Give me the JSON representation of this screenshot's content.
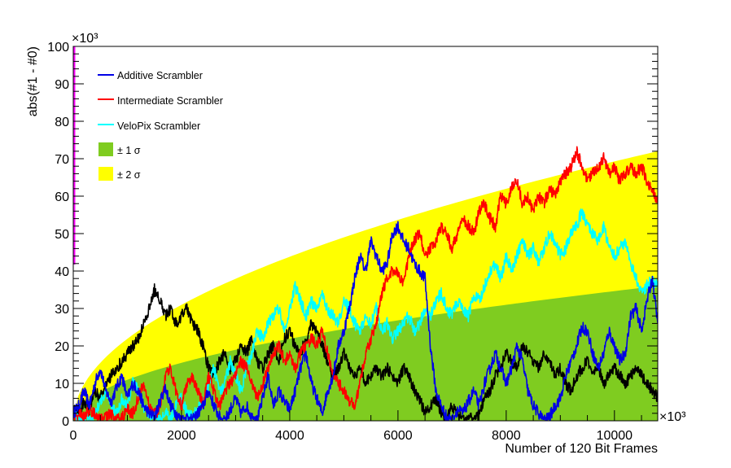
{
  "chart_data": {
    "type": "line",
    "title": "",
    "xlabel": "Number of 120 Bit Frames",
    "ylabel": "abs(#1 - #0)",
    "x_multiplier_label": "×10³",
    "y_multiplier_label": "×10³",
    "xlim": [
      0,
      10800
    ],
    "ylim": [
      0,
      100
    ],
    "x_ticks": [
      0,
      2000,
      4000,
      6000,
      8000,
      10000
    ],
    "x_tick_labels": [
      "0",
      "2000",
      "4000",
      "6000",
      "8000",
      "10000"
    ],
    "y_ticks": [
      0,
      10,
      20,
      30,
      40,
      50,
      60,
      70,
      80,
      90,
      100
    ],
    "y_tick_labels": [
      "0",
      "10",
      "20",
      "30",
      "40",
      "50",
      "60",
      "70",
      "80",
      "90",
      "100"
    ],
    "grid": false,
    "legend_position": "top-left",
    "bands": [
      {
        "name": "± 2 σ",
        "color": "#ffff00",
        "x": [
          0,
          10800
        ],
        "y_end": 72
      },
      {
        "name": "± 1 σ",
        "color": "#7fcc20",
        "x": [
          0,
          10800
        ],
        "y_end": 36
      }
    ],
    "series": [
      {
        "name": "Additive Scrambler",
        "color": "#0000e6",
        "x": [
          0,
          100,
          200,
          300,
          400,
          500,
          600,
          700,
          800,
          900,
          1000,
          1100,
          1200,
          1300,
          1400,
          1500,
          1600,
          1700,
          1800,
          1900,
          2000,
          2100,
          2200,
          2300,
          2400,
          2500,
          2600,
          2700,
          2800,
          2900,
          3000,
          3100,
          3200,
          3300,
          3400,
          3500,
          3600,
          3700,
          3800,
          3900,
          4000,
          4100,
          4200,
          4300,
          4400,
          4500,
          4600,
          4700,
          4800,
          4900,
          5000,
          5100,
          5200,
          5300,
          5400,
          5500,
          5600,
          5700,
          5800,
          5900,
          6000,
          6100,
          6200,
          6300,
          6400,
          6500,
          6600,
          6700,
          6800,
          6900,
          7000,
          7100,
          7200,
          7300,
          7400,
          7500,
          7600,
          7700,
          7800,
          7900,
          8000,
          8100,
          8200,
          8300,
          8400,
          8500,
          8600,
          8700,
          8800,
          8900,
          9000,
          9100,
          9200,
          9300,
          9400,
          9500,
          9600,
          9700,
          9800,
          9900,
          10000,
          10100,
          10200,
          10300,
          10400,
          10500,
          10600,
          10700,
          10800
        ],
        "y": [
          2,
          4,
          8,
          4,
          10,
          14,
          8,
          5,
          9,
          12,
          6,
          10,
          8,
          4,
          2,
          1,
          5,
          9,
          4,
          2,
          0,
          1,
          0,
          2,
          4,
          8,
          4,
          1,
          0,
          3,
          6,
          2,
          4,
          1,
          0,
          6,
          12,
          4,
          8,
          5,
          3,
          8,
          14,
          18,
          10,
          6,
          2,
          8,
          12,
          20,
          24,
          30,
          38,
          44,
          40,
          48,
          44,
          40,
          42,
          50,
          52,
          48,
          46,
          42,
          40,
          38,
          20,
          8,
          4,
          1,
          0,
          3,
          2,
          5,
          8,
          4,
          10,
          14,
          18,
          14,
          10,
          14,
          20,
          16,
          8,
          4,
          2,
          0,
          1,
          4,
          6,
          12,
          16,
          20,
          25,
          24,
          18,
          14,
          18,
          24,
          20,
          16,
          18,
          28,
          30,
          24,
          32,
          38,
          26
        ]
      },
      {
        "name": "Intermediate Scrambler",
        "color": "#ff0000",
        "x": [
          0,
          100,
          200,
          300,
          400,
          500,
          600,
          700,
          800,
          900,
          1000,
          1100,
          1200,
          1300,
          1400,
          1500,
          1600,
          1700,
          1800,
          1900,
          2000,
          2100,
          2200,
          2300,
          2400,
          2500,
          2600,
          2700,
          2800,
          2900,
          3000,
          3100,
          3200,
          3300,
          3400,
          3500,
          3600,
          3700,
          3800,
          3900,
          4000,
          4100,
          4200,
          4300,
          4400,
          4500,
          4600,
          4700,
          4800,
          4900,
          5000,
          5100,
          5200,
          5300,
          5400,
          5500,
          5600,
          5700,
          5800,
          5900,
          6000,
          6100,
          6200,
          6300,
          6400,
          6500,
          6600,
          6700,
          6800,
          6900,
          7000,
          7100,
          7200,
          7300,
          7400,
          7500,
          7600,
          7700,
          7800,
          7900,
          8000,
          8100,
          8200,
          8300,
          8400,
          8500,
          8600,
          8700,
          8800,
          8900,
          9000,
          9100,
          9200,
          9300,
          9400,
          9500,
          9600,
          9700,
          9800,
          9900,
          10000,
          10100,
          10200,
          10300,
          10400,
          10500,
          10600,
          10700,
          10800
        ],
        "y": [
          0,
          2,
          1,
          3,
          2,
          0,
          1,
          2,
          0,
          1,
          3,
          2,
          6,
          10,
          4,
          2,
          3,
          12,
          14,
          8,
          4,
          10,
          12,
          8,
          4,
          12,
          8,
          4,
          8,
          10,
          12,
          16,
          14,
          10,
          6,
          10,
          14,
          18,
          20,
          16,
          18,
          14,
          18,
          20,
          22,
          20,
          24,
          18,
          12,
          10,
          8,
          5,
          4,
          10,
          18,
          22,
          26,
          34,
          38,
          40,
          40,
          36,
          44,
          48,
          50,
          44,
          46,
          48,
          52,
          50,
          46,
          50,
          54,
          52,
          50,
          56,
          58,
          54,
          52,
          60,
          58,
          62,
          64,
          58,
          60,
          56,
          60,
          58,
          62,
          60,
          64,
          66,
          68,
          72,
          68,
          64,
          66,
          68,
          70,
          66,
          68,
          64,
          66,
          68,
          66,
          68,
          64,
          62,
          58
        ]
      },
      {
        "name": "VeloPix Scrambler",
        "color": "#00ffff",
        "x": [
          0,
          100,
          200,
          300,
          400,
          500,
          600,
          700,
          800,
          900,
          1000,
          1100,
          1200,
          1300,
          1400,
          1500,
          1600,
          1700,
          1800,
          1900,
          2000,
          2100,
          2200,
          2300,
          2400,
          2500,
          2600,
          2700,
          2800,
          2900,
          3000,
          3100,
          3200,
          3300,
          3400,
          3500,
          3600,
          3700,
          3800,
          3900,
          4000,
          4100,
          4200,
          4300,
          4400,
          4500,
          4600,
          4700,
          4800,
          4900,
          5000,
          5100,
          5200,
          5300,
          5400,
          5500,
          5600,
          5700,
          5800,
          5900,
          6000,
          6100,
          6200,
          6300,
          6400,
          6500,
          6600,
          6700,
          6800,
          6900,
          7000,
          7100,
          7200,
          7300,
          7400,
          7500,
          7600,
          7700,
          7800,
          7900,
          8000,
          8100,
          8200,
          8300,
          8400,
          8500,
          8600,
          8700,
          8800,
          8900,
          9000,
          9100,
          9200,
          9300,
          9400,
          9500,
          9600,
          9700,
          9800,
          9900,
          10000,
          10100,
          10200,
          10300,
          10400,
          10500,
          10600,
          10700,
          10800
        ],
        "y": [
          2,
          0,
          1,
          0,
          2,
          5,
          8,
          4,
          2,
          6,
          4,
          10,
          8,
          4,
          2,
          1,
          0,
          2,
          1,
          4,
          6,
          2,
          1,
          3,
          5,
          10,
          14,
          8,
          10,
          16,
          12,
          8,
          14,
          18,
          24,
          22,
          26,
          28,
          30,
          24,
          30,
          36,
          32,
          28,
          32,
          30,
          34,
          30,
          28,
          26,
          32,
          30,
          26,
          24,
          28,
          26,
          30,
          24,
          26,
          22,
          24,
          26,
          28,
          24,
          26,
          30,
          28,
          32,
          34,
          30,
          28,
          32,
          30,
          28,
          34,
          32,
          36,
          40,
          42,
          38,
          44,
          40,
          44,
          48,
          44,
          46,
          42,
          46,
          50,
          48,
          44,
          46,
          50,
          52,
          56,
          52,
          50,
          48,
          52,
          46,
          44,
          46,
          48,
          42,
          38,
          34,
          36,
          38,
          36
        ]
      },
      {
        "name": "",
        "color": "#000000",
        "x": [
          0,
          100,
          200,
          300,
          400,
          500,
          600,
          700,
          800,
          900,
          1000,
          1100,
          1200,
          1300,
          1400,
          1500,
          1600,
          1700,
          1800,
          1900,
          2000,
          2100,
          2200,
          2300,
          2400,
          2500,
          2600,
          2700,
          2800,
          2900,
          3000,
          3100,
          3200,
          3300,
          3400,
          3500,
          3600,
          3700,
          3800,
          3900,
          4000,
          4100,
          4200,
          4300,
          4400,
          4500,
          4600,
          4700,
          4800,
          4900,
          5000,
          5100,
          5200,
          5300,
          5400,
          5500,
          5600,
          5700,
          5800,
          5900,
          6000,
          6100,
          6200,
          6300,
          6400,
          6500,
          6600,
          6700,
          6800,
          6900,
          7000,
          7100,
          7200,
          7300,
          7400,
          7500,
          7600,
          7700,
          7800,
          7900,
          8000,
          8100,
          8200,
          8300,
          8400,
          8500,
          8600,
          8700,
          8800,
          8900,
          9000,
          9100,
          9200,
          9300,
          9400,
          9500,
          9600,
          9700,
          9800,
          9900,
          10000,
          10100,
          10200,
          10300,
          10400,
          10500,
          10600,
          10700,
          10800
        ],
        "y": [
          4,
          2,
          5,
          3,
          8,
          6,
          10,
          12,
          14,
          16,
          18,
          20,
          22,
          26,
          30,
          35,
          32,
          28,
          30,
          26,
          28,
          30,
          26,
          24,
          20,
          14,
          12,
          16,
          18,
          14,
          16,
          20,
          18,
          22,
          16,
          14,
          18,
          20,
          16,
          22,
          24,
          20,
          18,
          22,
          26,
          24,
          20,
          16,
          12,
          14,
          18,
          14,
          12,
          14,
          10,
          12,
          14,
          12,
          14,
          12,
          10,
          14,
          12,
          8,
          6,
          2,
          4,
          6,
          2,
          0,
          4,
          2,
          0,
          1,
          0,
          2,
          6,
          8,
          12,
          14,
          18,
          16,
          14,
          20,
          18,
          16,
          14,
          18,
          16,
          12,
          14,
          10,
          8,
          12,
          14,
          16,
          12,
          14,
          10,
          12,
          14,
          12,
          10,
          12,
          14,
          12,
          10,
          8,
          6
        ]
      }
    ]
  }
}
